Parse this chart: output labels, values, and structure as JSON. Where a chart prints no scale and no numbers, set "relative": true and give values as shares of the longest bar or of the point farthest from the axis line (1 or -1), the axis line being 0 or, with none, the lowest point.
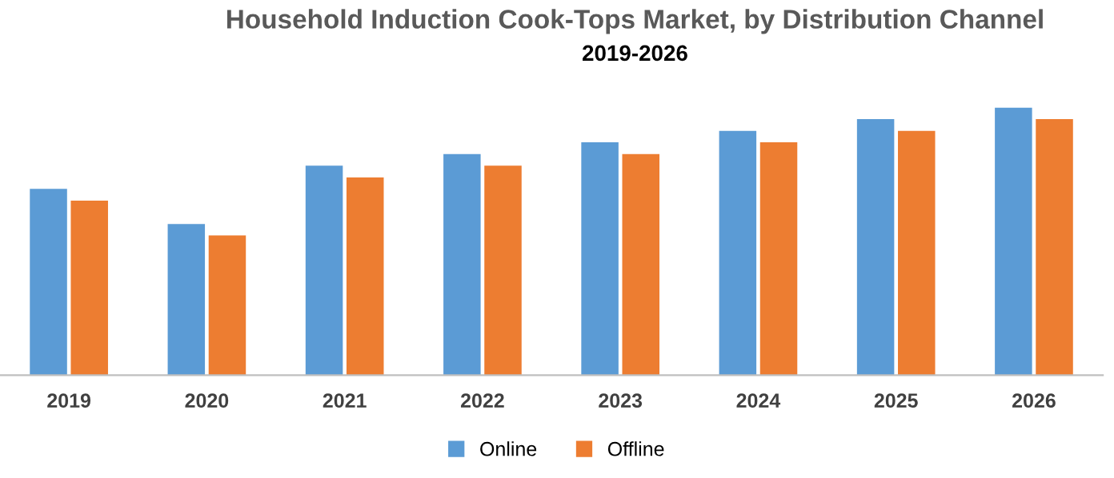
{
  "chart_data": {
    "type": "bar",
    "title": "Household Induction Cook-Tops Market, by Distribution Channel",
    "subtitle": "2019-2026",
    "categories": [
      "2019",
      "2020",
      "2021",
      "2022",
      "2023",
      "2024",
      "2025",
      "2026"
    ],
    "relative": true,
    "legend": "bottom",
    "grid": false,
    "series": [
      {
        "name": "Online",
        "color": "#5b9bd5",
        "values": [
          0.696,
          0.565,
          0.783,
          0.826,
          0.87,
          0.913,
          0.957,
          1.0
        ]
      },
      {
        "name": "Offline",
        "color": "#ed7d31",
        "values": [
          0.652,
          0.522,
          0.739,
          0.783,
          0.826,
          0.87,
          0.913,
          0.957
        ]
      }
    ]
  }
}
